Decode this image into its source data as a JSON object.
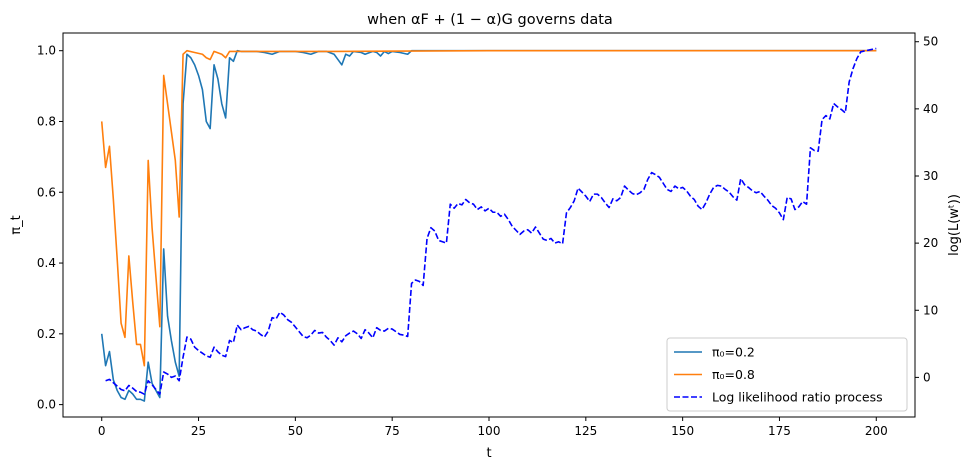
{
  "chart_data": {
    "type": "line",
    "title": "when αF + (1 − α)G governs data",
    "xlabel": "t",
    "ylabel_left": "π_t",
    "ylabel_right": "log(L(wᵗ))",
    "xlim": [
      -10,
      210
    ],
    "ylim_left": [
      -0.035,
      1.05
    ],
    "ylim_right": [
      -5.9,
      51.3
    ],
    "x_ticks": [
      0,
      25,
      50,
      75,
      100,
      125,
      150,
      175,
      200
    ],
    "y_ticks_left": [
      0.0,
      0.2,
      0.4,
      0.6,
      0.8,
      1.0
    ],
    "y_ticks_right": [
      0,
      10,
      20,
      30,
      40,
      50
    ],
    "legend_position": "lower-right",
    "series": [
      {
        "name": "π₀=0.2",
        "axis": "left",
        "color": "#1f77b4",
        "style": "solid",
        "points": [
          [
            0,
            0.2
          ],
          [
            1,
            0.11
          ],
          [
            2,
            0.15
          ],
          [
            3,
            0.07
          ],
          [
            4,
            0.04
          ],
          [
            5,
            0.02
          ],
          [
            6,
            0.015
          ],
          [
            7,
            0.04
          ],
          [
            8,
            0.03
          ],
          [
            9,
            0.015
          ],
          [
            10,
            0.015
          ],
          [
            11,
            0.01
          ],
          [
            12,
            0.12
          ],
          [
            13,
            0.06
          ],
          [
            14,
            0.04
          ],
          [
            15,
            0.02
          ],
          [
            16,
            0.44
          ],
          [
            17,
            0.25
          ],
          [
            18,
            0.18
          ],
          [
            19,
            0.12
          ],
          [
            20,
            0.08
          ],
          [
            21,
            0.85
          ],
          [
            22,
            0.99
          ],
          [
            23,
            0.98
          ],
          [
            24,
            0.96
          ],
          [
            25,
            0.93
          ],
          [
            26,
            0.89
          ],
          [
            27,
            0.8
          ],
          [
            28,
            0.78
          ],
          [
            29,
            0.96
          ],
          [
            30,
            0.92
          ],
          [
            31,
            0.85
          ],
          [
            32,
            0.81
          ],
          [
            33,
            0.98
          ],
          [
            34,
            0.97
          ],
          [
            35,
            1.0
          ],
          [
            36,
            0.998
          ],
          [
            40,
            0.998
          ],
          [
            42,
            0.995
          ],
          [
            44,
            0.99
          ],
          [
            46,
            0.998
          ],
          [
            50,
            0.998
          ],
          [
            52,
            0.995
          ],
          [
            54,
            0.99
          ],
          [
            56,
            0.998
          ],
          [
            58,
            0.998
          ],
          [
            60,
            0.99
          ],
          [
            61,
            0.975
          ],
          [
            62,
            0.96
          ],
          [
            63,
            0.99
          ],
          [
            64,
            0.985
          ],
          [
            65,
            0.998
          ],
          [
            67,
            0.995
          ],
          [
            68,
            0.99
          ],
          [
            70,
            0.998
          ],
          [
            71,
            0.995
          ],
          [
            72,
            0.985
          ],
          [
            73,
            0.998
          ],
          [
            74,
            0.992
          ],
          [
            75,
            0.998
          ],
          [
            77,
            0.995
          ],
          [
            79,
            0.99
          ],
          [
            80,
            1.0
          ],
          [
            120,
            1.0
          ],
          [
            160,
            1.0
          ],
          [
            200,
            1.0
          ]
        ]
      },
      {
        "name": "π₀=0.8",
        "axis": "left",
        "color": "#ff7f0e",
        "style": "solid",
        "points": [
          [
            0,
            0.8
          ],
          [
            1,
            0.67
          ],
          [
            2,
            0.73
          ],
          [
            3,
            0.58
          ],
          [
            4,
            0.41
          ],
          [
            5,
            0.23
          ],
          [
            6,
            0.19
          ],
          [
            7,
            0.42
          ],
          [
            8,
            0.29
          ],
          [
            9,
            0.17
          ],
          [
            10,
            0.17
          ],
          [
            11,
            0.11
          ],
          [
            12,
            0.69
          ],
          [
            13,
            0.5
          ],
          [
            14,
            0.36
          ],
          [
            15,
            0.22
          ],
          [
            16,
            0.93
          ],
          [
            17,
            0.85
          ],
          [
            18,
            0.77
          ],
          [
            19,
            0.69
          ],
          [
            20,
            0.53
          ],
          [
            21,
            0.99
          ],
          [
            22,
            1.0
          ],
          [
            24,
            0.995
          ],
          [
            26,
            0.99
          ],
          [
            27,
            0.98
          ],
          [
            28,
            0.975
          ],
          [
            29,
            0.998
          ],
          [
            31,
            0.99
          ],
          [
            32,
            0.98
          ],
          [
            33,
            0.998
          ],
          [
            50,
            0.998
          ],
          [
            60,
            0.998
          ],
          [
            100,
            1.0
          ],
          [
            150,
            1.0
          ],
          [
            200,
            1.0
          ]
        ]
      },
      {
        "name": "Log likelihood ratio process",
        "axis": "right",
        "color": "#0000ff",
        "style": "dashed",
        "points": [
          [
            1,
            -0.5
          ],
          [
            2,
            -0.3
          ],
          [
            3,
            -0.8
          ],
          [
            4,
            -1.3
          ],
          [
            5,
            -1.8
          ],
          [
            6,
            -2.0
          ],
          [
            7,
            -1.2
          ],
          [
            8,
            -1.6
          ],
          [
            9,
            -2.1
          ],
          [
            10,
            -2.2
          ],
          [
            11,
            -2.5
          ],
          [
            12,
            -0.5
          ],
          [
            13,
            -1.1
          ],
          [
            14,
            -1.8
          ],
          [
            15,
            -2.5
          ],
          [
            16,
            0.8
          ],
          [
            17,
            0.5
          ],
          [
            18,
            0.0
          ],
          [
            19,
            0.2
          ],
          [
            20,
            -0.5
          ],
          [
            21,
            3.0
          ],
          [
            22,
            6.0
          ],
          [
            23,
            5.7
          ],
          [
            24,
            4.5
          ],
          [
            25,
            4.0
          ],
          [
            26,
            3.6
          ],
          [
            27,
            3.2
          ],
          [
            28,
            3.0
          ],
          [
            29,
            4.5
          ],
          [
            30,
            3.8
          ],
          [
            31,
            3.3
          ],
          [
            32,
            3.1
          ],
          [
            33,
            5.5
          ],
          [
            34,
            5.2
          ],
          [
            35,
            7.8
          ],
          [
            36,
            7.1
          ],
          [
            37,
            7.4
          ],
          [
            38,
            7.6
          ],
          [
            39,
            7.1
          ],
          [
            40,
            6.9
          ],
          [
            41,
            6.4
          ],
          [
            42,
            6.0
          ],
          [
            43,
            6.9
          ],
          [
            44,
            8.9
          ],
          [
            45,
            8.7
          ],
          [
            46,
            9.7
          ],
          [
            47,
            9.3
          ],
          [
            48,
            8.6
          ],
          [
            49,
            8.2
          ],
          [
            50,
            7.5
          ],
          [
            51,
            6.8
          ],
          [
            52,
            6.1
          ],
          [
            53,
            5.9
          ],
          [
            54,
            6.3
          ],
          [
            55,
            7.0
          ],
          [
            56,
            6.6
          ],
          [
            57,
            6.7
          ],
          [
            58,
            6.0
          ],
          [
            59,
            5.5
          ],
          [
            60,
            4.8
          ],
          [
            61,
            5.9
          ],
          [
            62,
            5.3
          ],
          [
            63,
            6.2
          ],
          [
            64,
            6.6
          ],
          [
            65,
            6.9
          ],
          [
            66,
            6.5
          ],
          [
            67,
            5.8
          ],
          [
            68,
            7.1
          ],
          [
            69,
            6.6
          ],
          [
            70,
            5.9
          ],
          [
            71,
            7.4
          ],
          [
            72,
            7.0
          ],
          [
            73,
            6.9
          ],
          [
            74,
            7.3
          ],
          [
            75,
            7.2
          ],
          [
            76,
            6.8
          ],
          [
            77,
            6.4
          ],
          [
            78,
            6.3
          ],
          [
            79,
            6.1
          ],
          [
            80,
            14.0
          ],
          [
            81,
            14.5
          ],
          [
            82,
            14.3
          ],
          [
            83,
            13.7
          ],
          [
            84,
            20.7
          ],
          [
            85,
            22.3
          ],
          [
            86,
            21.8
          ],
          [
            87,
            20.4
          ],
          [
            88,
            20.2
          ],
          [
            89,
            20.0
          ],
          [
            90,
            25.8
          ],
          [
            91,
            25.2
          ],
          [
            92,
            25.9
          ],
          [
            93,
            25.7
          ],
          [
            94,
            26.5
          ],
          [
            95,
            26.0
          ],
          [
            96,
            25.8
          ],
          [
            97,
            25.0
          ],
          [
            98,
            25.4
          ],
          [
            99,
            24.8
          ],
          [
            100,
            25.2
          ],
          [
            101,
            24.6
          ],
          [
            102,
            24.6
          ],
          [
            103,
            24.0
          ],
          [
            104,
            24.3
          ],
          [
            105,
            23.5
          ],
          [
            106,
            22.5
          ],
          [
            107,
            21.9
          ],
          [
            108,
            21.3
          ],
          [
            109,
            21.8
          ],
          [
            110,
            22.0
          ],
          [
            111,
            21.5
          ],
          [
            112,
            22.4
          ],
          [
            113,
            21.5
          ],
          [
            114,
            20.6
          ],
          [
            115,
            20.4
          ],
          [
            116,
            20.7
          ],
          [
            117,
            20.0
          ],
          [
            118,
            20.2
          ],
          [
            119,
            19.9
          ],
          [
            120,
            24.5
          ],
          [
            121,
            25.3
          ],
          [
            122,
            26.3
          ],
          [
            123,
            28.2
          ],
          [
            124,
            27.6
          ],
          [
            125,
            27.0
          ],
          [
            126,
            26.2
          ],
          [
            127,
            27.3
          ],
          [
            128,
            27.3
          ],
          [
            129,
            26.8
          ],
          [
            130,
            26.0
          ],
          [
            131,
            25.3
          ],
          [
            132,
            26.6
          ],
          [
            133,
            26.3
          ],
          [
            134,
            26.8
          ],
          [
            135,
            28.5
          ],
          [
            136,
            27.9
          ],
          [
            137,
            27.4
          ],
          [
            138,
            27.2
          ],
          [
            139,
            27.5
          ],
          [
            140,
            28.0
          ],
          [
            141,
            29.5
          ],
          [
            142,
            30.5
          ],
          [
            143,
            30.2
          ],
          [
            144,
            29.8
          ],
          [
            145,
            28.9
          ],
          [
            146,
            28.0
          ],
          [
            147,
            27.7
          ],
          [
            148,
            28.5
          ],
          [
            149,
            28.1
          ],
          [
            150,
            28.3
          ],
          [
            151,
            27.8
          ],
          [
            152,
            27.0
          ],
          [
            153,
            26.5
          ],
          [
            154,
            25.5
          ],
          [
            155,
            25.0
          ],
          [
            156,
            26.0
          ],
          [
            157,
            27.3
          ],
          [
            158,
            28.3
          ],
          [
            159,
            28.6
          ],
          [
            160,
            28.5
          ],
          [
            161,
            28.0
          ],
          [
            162,
            27.6
          ],
          [
            163,
            26.9
          ],
          [
            164,
            26.4
          ],
          [
            165,
            29.6
          ],
          [
            166,
            28.7
          ],
          [
            167,
            28.3
          ],
          [
            168,
            27.8
          ],
          [
            169,
            27.5
          ],
          [
            170,
            27.7
          ],
          [
            171,
            27.0
          ],
          [
            172,
            26.4
          ],
          [
            173,
            25.6
          ],
          [
            174,
            25.2
          ],
          [
            175,
            24.5
          ],
          [
            176,
            23.5
          ],
          [
            177,
            26.8
          ],
          [
            178,
            26.6
          ],
          [
            179,
            25.0
          ],
          [
            180,
            25.4
          ],
          [
            181,
            26.2
          ],
          [
            182,
            25.8
          ],
          [
            183,
            34.2
          ],
          [
            184,
            33.8
          ],
          [
            185,
            33.7
          ],
          [
            186,
            38.4
          ],
          [
            187,
            39.0
          ],
          [
            188,
            38.5
          ],
          [
            189,
            40.8
          ],
          [
            190,
            40.3
          ],
          [
            191,
            39.9
          ],
          [
            192,
            39.4
          ],
          [
            193,
            44.0
          ],
          [
            194,
            46.0
          ],
          [
            195,
            47.5
          ],
          [
            196,
            48.5
          ],
          [
            200,
            49.0
          ]
        ]
      }
    ]
  }
}
